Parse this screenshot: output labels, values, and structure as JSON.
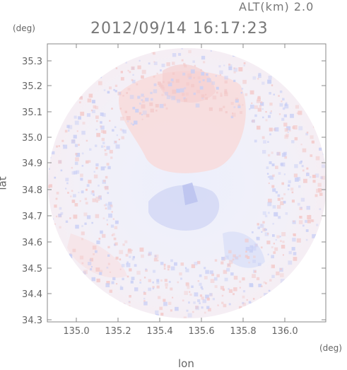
{
  "header": {
    "altitude_label": "ALT(km) 2.0",
    "timestamp": "2012/09/14 16:17:23"
  },
  "axes": {
    "x_title": "lon",
    "y_title": "lat",
    "x_unit": "(deg)",
    "y_unit": "(deg)",
    "x_ticks": [
      "135.0",
      "135.2",
      "135.4",
      "135.6",
      "135.8",
      "136.0"
    ],
    "y_ticks": [
      "35.3",
      "35.2",
      "35.1",
      "35.0",
      "34.9",
      "34.8",
      "34.7",
      "34.6",
      "34.5",
      "34.4",
      "34.3"
    ]
  },
  "colors": {
    "positive": "#f3c9c9",
    "negative": "#c9cff5",
    "neutral": "#eef1fb",
    "frame": "#888888"
  }
}
